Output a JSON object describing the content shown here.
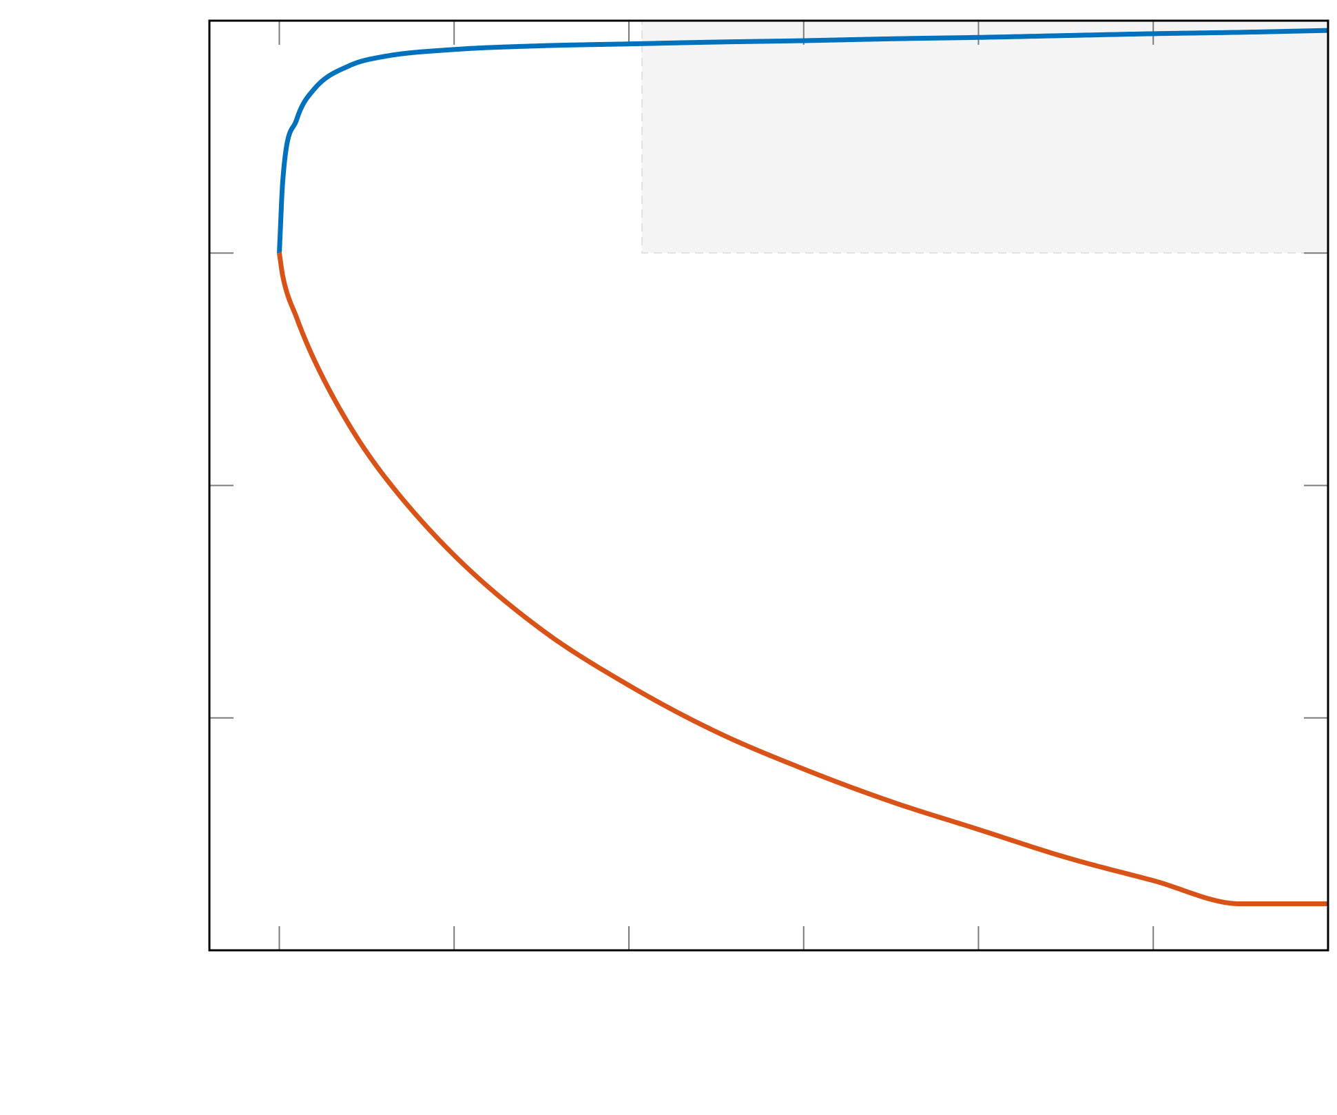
{
  "chart_data": {
    "type": "line",
    "title": "",
    "xlabel": "",
    "ylabel": "",
    "xlim": [
      -0.2,
      3.0
    ],
    "ylim": [
      -1.5,
      0.5
    ],
    "xticks": [
      0,
      0.5,
      1,
      1.5,
      2,
      2.5
    ],
    "yticks": [
      -1,
      -0.5,
      0
    ],
    "xtick_labels": [],
    "ytick_labels": [],
    "grid": false,
    "legend": {
      "placement": "top-right",
      "entries": []
    },
    "series": [
      {
        "color": "#0072BD",
        "branch": "upper",
        "x": [
          0.0,
          0.01,
          0.05,
          0.1,
          0.2,
          0.3,
          0.5,
          0.75,
          1.0,
          1.25,
          1.5,
          1.75,
          2.0,
          2.25,
          2.5,
          2.75,
          3.0
        ],
        "y": [
          0.0,
          0.157,
          0.288,
          0.353,
          0.403,
          0.423,
          0.438,
          0.446,
          0.45,
          0.454,
          0.457,
          0.461,
          0.464,
          0.468,
          0.472,
          0.475,
          0.479
        ]
      },
      {
        "color": "#D95319",
        "branch": "lower",
        "x": [
          0.0,
          0.01,
          0.05,
          0.1,
          0.2,
          0.3,
          0.5,
          0.75,
          1.0,
          1.25,
          1.5,
          1.75,
          2.0,
          2.25,
          2.5,
          2.75,
          3.0
        ],
        "y": [
          0.0,
          -0.05,
          -0.14,
          -0.23,
          -0.37,
          -0.48,
          -0.65,
          -0.81,
          -0.93,
          -1.03,
          -1.11,
          -1.18,
          -1.24,
          -1.3,
          -1.35,
          -1.4,
          -1.4
        ]
      }
    ]
  }
}
